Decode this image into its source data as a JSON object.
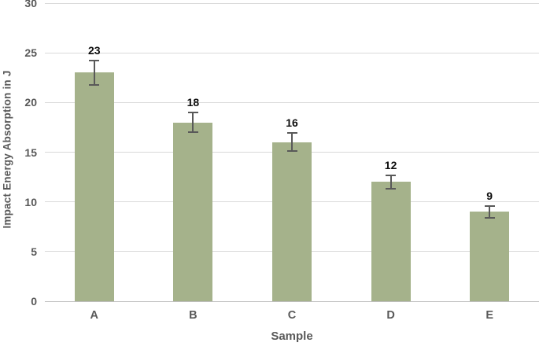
{
  "chart_data": {
    "type": "bar",
    "categories": [
      "A",
      "B",
      "C",
      "D",
      "E"
    ],
    "values": [
      23,
      18,
      16,
      12,
      9
    ],
    "error_bars": [
      1.2,
      1.0,
      0.9,
      0.7,
      0.6
    ],
    "data_labels": [
      "23",
      "18",
      "16",
      "12",
      "9"
    ],
    "xlabel": "Sample",
    "ylabel": "Impact Energy Absorption in J",
    "ylim": [
      0,
      30
    ],
    "y_ticks": [
      0,
      5,
      10,
      15,
      20,
      25,
      30
    ],
    "grid": "horizontal",
    "legend": "none",
    "colors": {
      "bar_fill": "#a5b28b",
      "error_bar": "#595959",
      "gridline": "#d9d9d9",
      "axis_line": "#bfbfbf",
      "tick_label": "#595959",
      "data_label": "#0d0d0d",
      "background": "#ffffff"
    }
  }
}
